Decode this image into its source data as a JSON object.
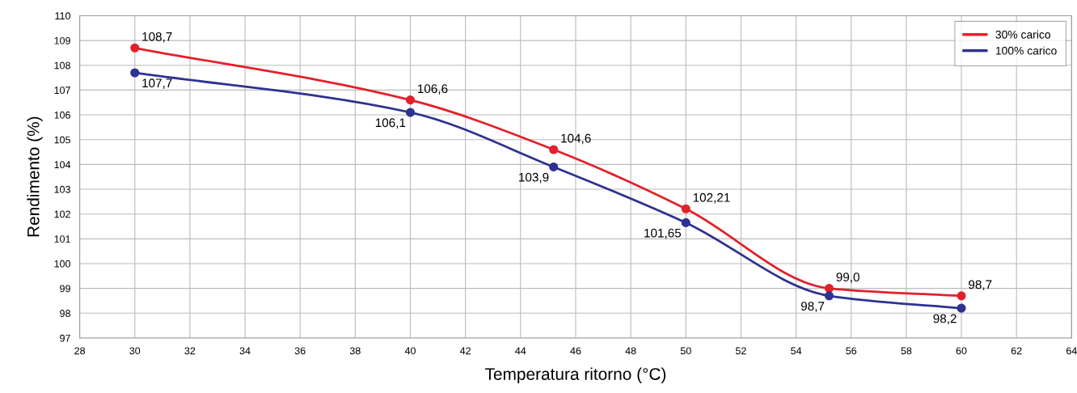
{
  "chart_data": {
    "type": "line",
    "xlabel": "Temperatura ritorno (°C)",
    "ylabel": "Rendimento (%)",
    "xlim": [
      28,
      64
    ],
    "xticks": [
      28,
      30,
      32,
      34,
      36,
      38,
      40,
      42,
      44,
      46,
      48,
      50,
      52,
      54,
      56,
      58,
      60,
      62,
      64
    ],
    "ylim": [
      97,
      110
    ],
    "yticks": [
      97,
      98,
      99,
      100,
      101,
      102,
      103,
      104,
      105,
      106,
      107,
      108,
      109,
      110
    ],
    "grid": true,
    "legend": "top right",
    "marker": "circle",
    "line_style": "solid",
    "series": [
      {
        "name": "30% carico",
        "color": "#e3202b",
        "x": [
          30,
          40,
          45.2,
          50,
          55.2,
          60
        ],
        "values": [
          108.7,
          106.6,
          104.6,
          102.21,
          99.0,
          98.7
        ],
        "value_labels": [
          "108,7",
          "106,6",
          "104,6",
          "102,21",
          "99,0",
          "98,7"
        ]
      },
      {
        "name": "100% carico",
        "color": "#2e3290",
        "x": [
          30,
          40,
          45.2,
          50,
          55.2,
          60
        ],
        "values": [
          107.7,
          106.1,
          103.9,
          101.65,
          98.7,
          98.2
        ],
        "value_labels": [
          "107,7",
          "106,1",
          "103,9",
          "101,65",
          "98,7",
          "98,2"
        ]
      }
    ]
  }
}
